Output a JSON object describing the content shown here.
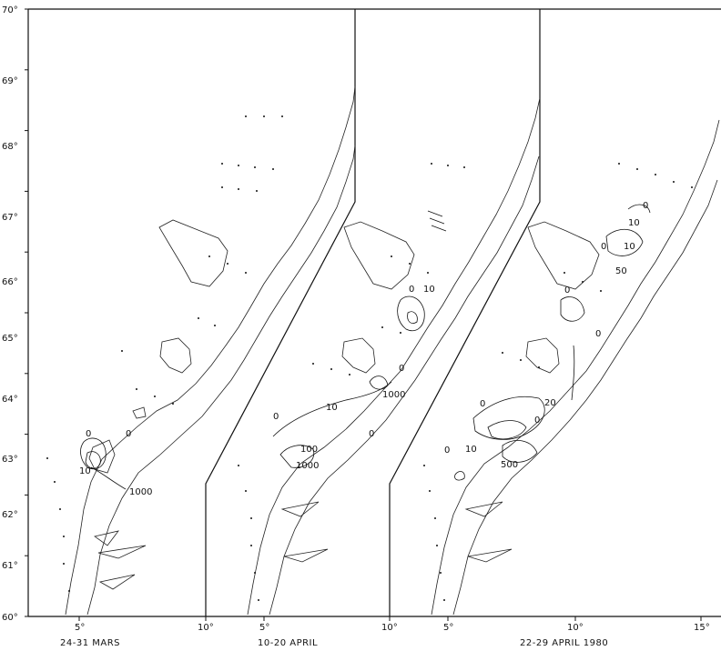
{
  "y_ticks": [
    "70°",
    "69°",
    "68°",
    "67°",
    "66°",
    "65°",
    "64°",
    "63°",
    "62°",
    "61°",
    "60°"
  ],
  "x_ticks": [
    "5°",
    "10°",
    "5°",
    "10°",
    "5°",
    "10°",
    "15°"
  ],
  "panels": [
    {
      "caption": "24-31 MARS",
      "contours": [
        "0",
        "0",
        "10",
        "1000"
      ]
    },
    {
      "caption": "10-20 APRIL",
      "contours": [
        "0",
        "10",
        "0",
        "0",
        "10",
        "0",
        "1000",
        "100",
        "1000"
      ]
    },
    {
      "caption": "22-29 APRIL 1980",
      "contours": [
        "0",
        "10",
        "0",
        "10",
        "50",
        "0",
        "0",
        "0",
        "0",
        "20",
        "0",
        "10",
        "500"
      ]
    }
  ]
}
